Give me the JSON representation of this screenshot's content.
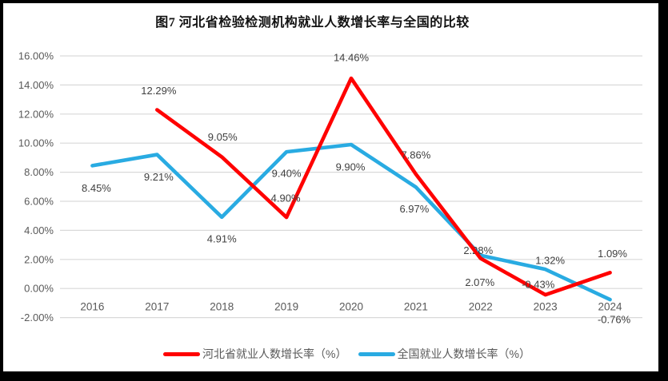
{
  "title": "图7 河北省检验检测机构就业人数增长率与全国的比较",
  "legend": {
    "items": [
      {
        "label": "河北省就业人数增长率（%）",
        "color": "#FF0000"
      },
      {
        "label": "全国就业人数增长率（%）",
        "color": "#29ABE2"
      }
    ]
  },
  "chart_data": {
    "type": "line",
    "title": "图7 河北省检验检测机构就业人数增长率与全国的比较",
    "categories": [
      "2016",
      "2017",
      "2018",
      "2019",
      "2020",
      "2021",
      "2022",
      "2023",
      "2024"
    ],
    "series": [
      {
        "name": "河北省就业人数增长率（%）",
        "color": "#FF0000",
        "values": [
          null,
          12.29,
          9.05,
          4.9,
          14.46,
          7.86,
          2.07,
          -0.43,
          1.09
        ],
        "labels": [
          null,
          "12.29%",
          "9.05%",
          "4.90%",
          "14.46%",
          "7.86%",
          "2.07%",
          "-0.43%",
          "1.09%"
        ],
        "label_dx": [
          null,
          2,
          1,
          -1,
          0,
          0,
          -1,
          -9,
          3
        ],
        "label_dy": [
          null,
          -24,
          -25,
          -24,
          -26,
          -24,
          30,
          -13,
          -24
        ]
      },
      {
        "name": "全国就业人数增长率（%）",
        "color": "#29ABE2",
        "values": [
          8.45,
          9.21,
          4.91,
          9.4,
          9.9,
          6.97,
          2.28,
          1.32,
          -0.76
        ],
        "labels": [
          "8.45%",
          "9.21%",
          "4.91%",
          "9.40%",
          "9.90%",
          "6.97%",
          "2.28%",
          "1.32%",
          "-0.76%"
        ],
        "label_dx": [
          5,
          2,
          0,
          0,
          -1,
          -2,
          -3,
          6,
          5
        ],
        "label_dy": [
          28,
          28,
          27,
          27,
          28,
          27,
          -6,
          -11,
          25
        ]
      }
    ],
    "y_axis": {
      "min": -2,
      "max": 16,
      "step": 2,
      "tick_labels": [
        "16.00%",
        "14.00%",
        "12.00%",
        "10.00%",
        "8.00%",
        "6.00%",
        "4.00%",
        "2.00%",
        "0.00%",
        "-2.00%"
      ]
    },
    "grid": true,
    "legend_position": "bottom",
    "colors": {
      "gridline": "#D9D9D9",
      "axis_text": "#595959",
      "data_label_text": "#404040"
    }
  }
}
